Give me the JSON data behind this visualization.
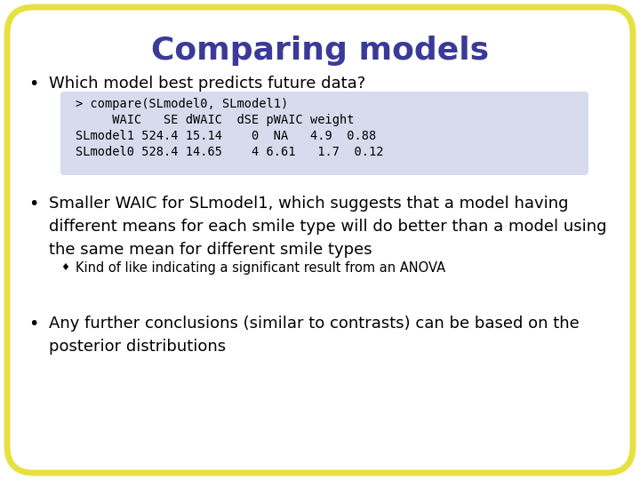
{
  "title": "Comparing models",
  "title_color": "#3a3a99",
  "title_fontsize": 26,
  "bg_color": "#ffffff",
  "border_color": "#e8e040",
  "border_linewidth": 5,
  "bullet1": "Which model best predicts future data?",
  "code_line1": "> compare(SLmodel0, SLmodel1)",
  "code_line2": "     WAIC   SE dWAIC  dSE pWAIC weight",
  "code_line3": "SLmodel1 524.4 15.14    0  NA   4.9  0.88",
  "code_line4": "SLmodel0 528.4 14.65    4 6.61   1.7  0.12",
  "code_bg": "#d8dbee",
  "bullet2_line1": "Smaller WAIC for SLmodel1, which suggests that a model having",
  "bullet2_line2": "different means for each smile type will do better than a model using",
  "bullet2_line3": "the same mean for different smile types",
  "sub_bullet": "Kind of like indicating a significant result from an ANOVA",
  "bullet3_line1": "Any further conclusions (similar to contrasts) can be based on the",
  "bullet3_line2": "posterior distributions",
  "text_color": "#000000",
  "bullet_color": "#000000",
  "main_fontsize": 13.0,
  "code_fontsize": 9.8,
  "sub_fontsize": 10.5,
  "bullet_fontsize": 14
}
